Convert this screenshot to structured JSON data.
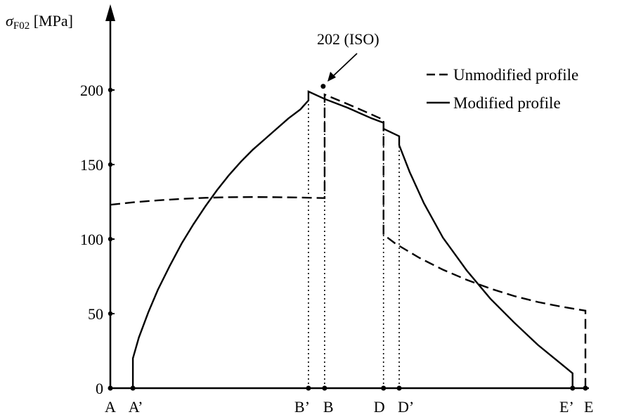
{
  "chart_data": {
    "type": "line",
    "ylabel": {
      "symbol": "σ",
      "subscript": "F02",
      "unit": " [MPa]"
    },
    "ylim": [
      0,
      200
    ],
    "yticks": [
      0,
      50,
      100,
      150,
      200
    ],
    "xlim": [
      0,
      1
    ],
    "x_points": [
      {
        "label": "A",
        "x": 0.0
      },
      {
        "label": "A’",
        "x": 0.0475
      },
      {
        "label": "B’",
        "x": 0.417
      },
      {
        "label": "B",
        "x": 0.451
      },
      {
        "label": "D",
        "x": 0.575
      },
      {
        "label": "D’",
        "x": 0.608
      },
      {
        "label": "E’",
        "x": 0.973
      },
      {
        "label": "E",
        "x": 1.0
      }
    ],
    "legend": {
      "position": "top-right",
      "entries": [
        {
          "label": "Unmodified profile",
          "style": "dashed"
        },
        {
          "label": "Modified profile",
          "style": "solid"
        }
      ]
    },
    "annotation": {
      "text": "202 (ISO)",
      "x": 0.448,
      "y": 202
    },
    "series": [
      {
        "name": "Unmodified profile",
        "style": "dashed",
        "points": [
          [
            0.0,
            123
          ],
          [
            0.05,
            124.7
          ],
          [
            0.1,
            126
          ],
          [
            0.15,
            127
          ],
          [
            0.2,
            127.7
          ],
          [
            0.25,
            128.1
          ],
          [
            0.3,
            128.2
          ],
          [
            0.35,
            128.1
          ],
          [
            0.4,
            127.9
          ],
          [
            0.451,
            127.5
          ],
          [
            0.451,
            197
          ],
          [
            0.5,
            190.5
          ],
          [
            0.54,
            185
          ],
          [
            0.575,
            180
          ],
          [
            0.575,
            103
          ],
          [
            0.6,
            97
          ],
          [
            0.65,
            87.5
          ],
          [
            0.7,
            79.5
          ],
          [
            0.75,
            72.7
          ],
          [
            0.8,
            66.8
          ],
          [
            0.85,
            61.8
          ],
          [
            0.9,
            57.8
          ],
          [
            0.95,
            54.6
          ],
          [
            1.0,
            52
          ],
          [
            1.0,
            0
          ]
        ]
      },
      {
        "name": "Modified profile",
        "style": "solid",
        "points": [
          [
            0.0475,
            0
          ],
          [
            0.0475,
            20
          ],
          [
            0.06,
            34
          ],
          [
            0.08,
            51
          ],
          [
            0.1,
            66
          ],
          [
            0.125,
            82
          ],
          [
            0.15,
            97
          ],
          [
            0.175,
            110
          ],
          [
            0.2,
            122
          ],
          [
            0.225,
            133
          ],
          [
            0.25,
            143
          ],
          [
            0.275,
            152
          ],
          [
            0.3,
            160
          ],
          [
            0.325,
            167
          ],
          [
            0.35,
            174
          ],
          [
            0.375,
            181
          ],
          [
            0.4,
            187
          ],
          [
            0.417,
            193
          ],
          [
            0.417,
            199
          ],
          [
            0.451,
            194
          ],
          [
            0.5,
            188
          ],
          [
            0.55,
            181
          ],
          [
            0.575,
            178
          ],
          [
            0.575,
            174
          ],
          [
            0.608,
            169
          ],
          [
            0.608,
            163
          ],
          [
            0.63,
            145
          ],
          [
            0.66,
            124
          ],
          [
            0.7,
            101
          ],
          [
            0.75,
            79
          ],
          [
            0.8,
            60
          ],
          [
            0.85,
            44
          ],
          [
            0.9,
            29
          ],
          [
            0.95,
            16
          ],
          [
            0.973,
            10
          ],
          [
            0.973,
            0
          ]
        ]
      }
    ]
  }
}
